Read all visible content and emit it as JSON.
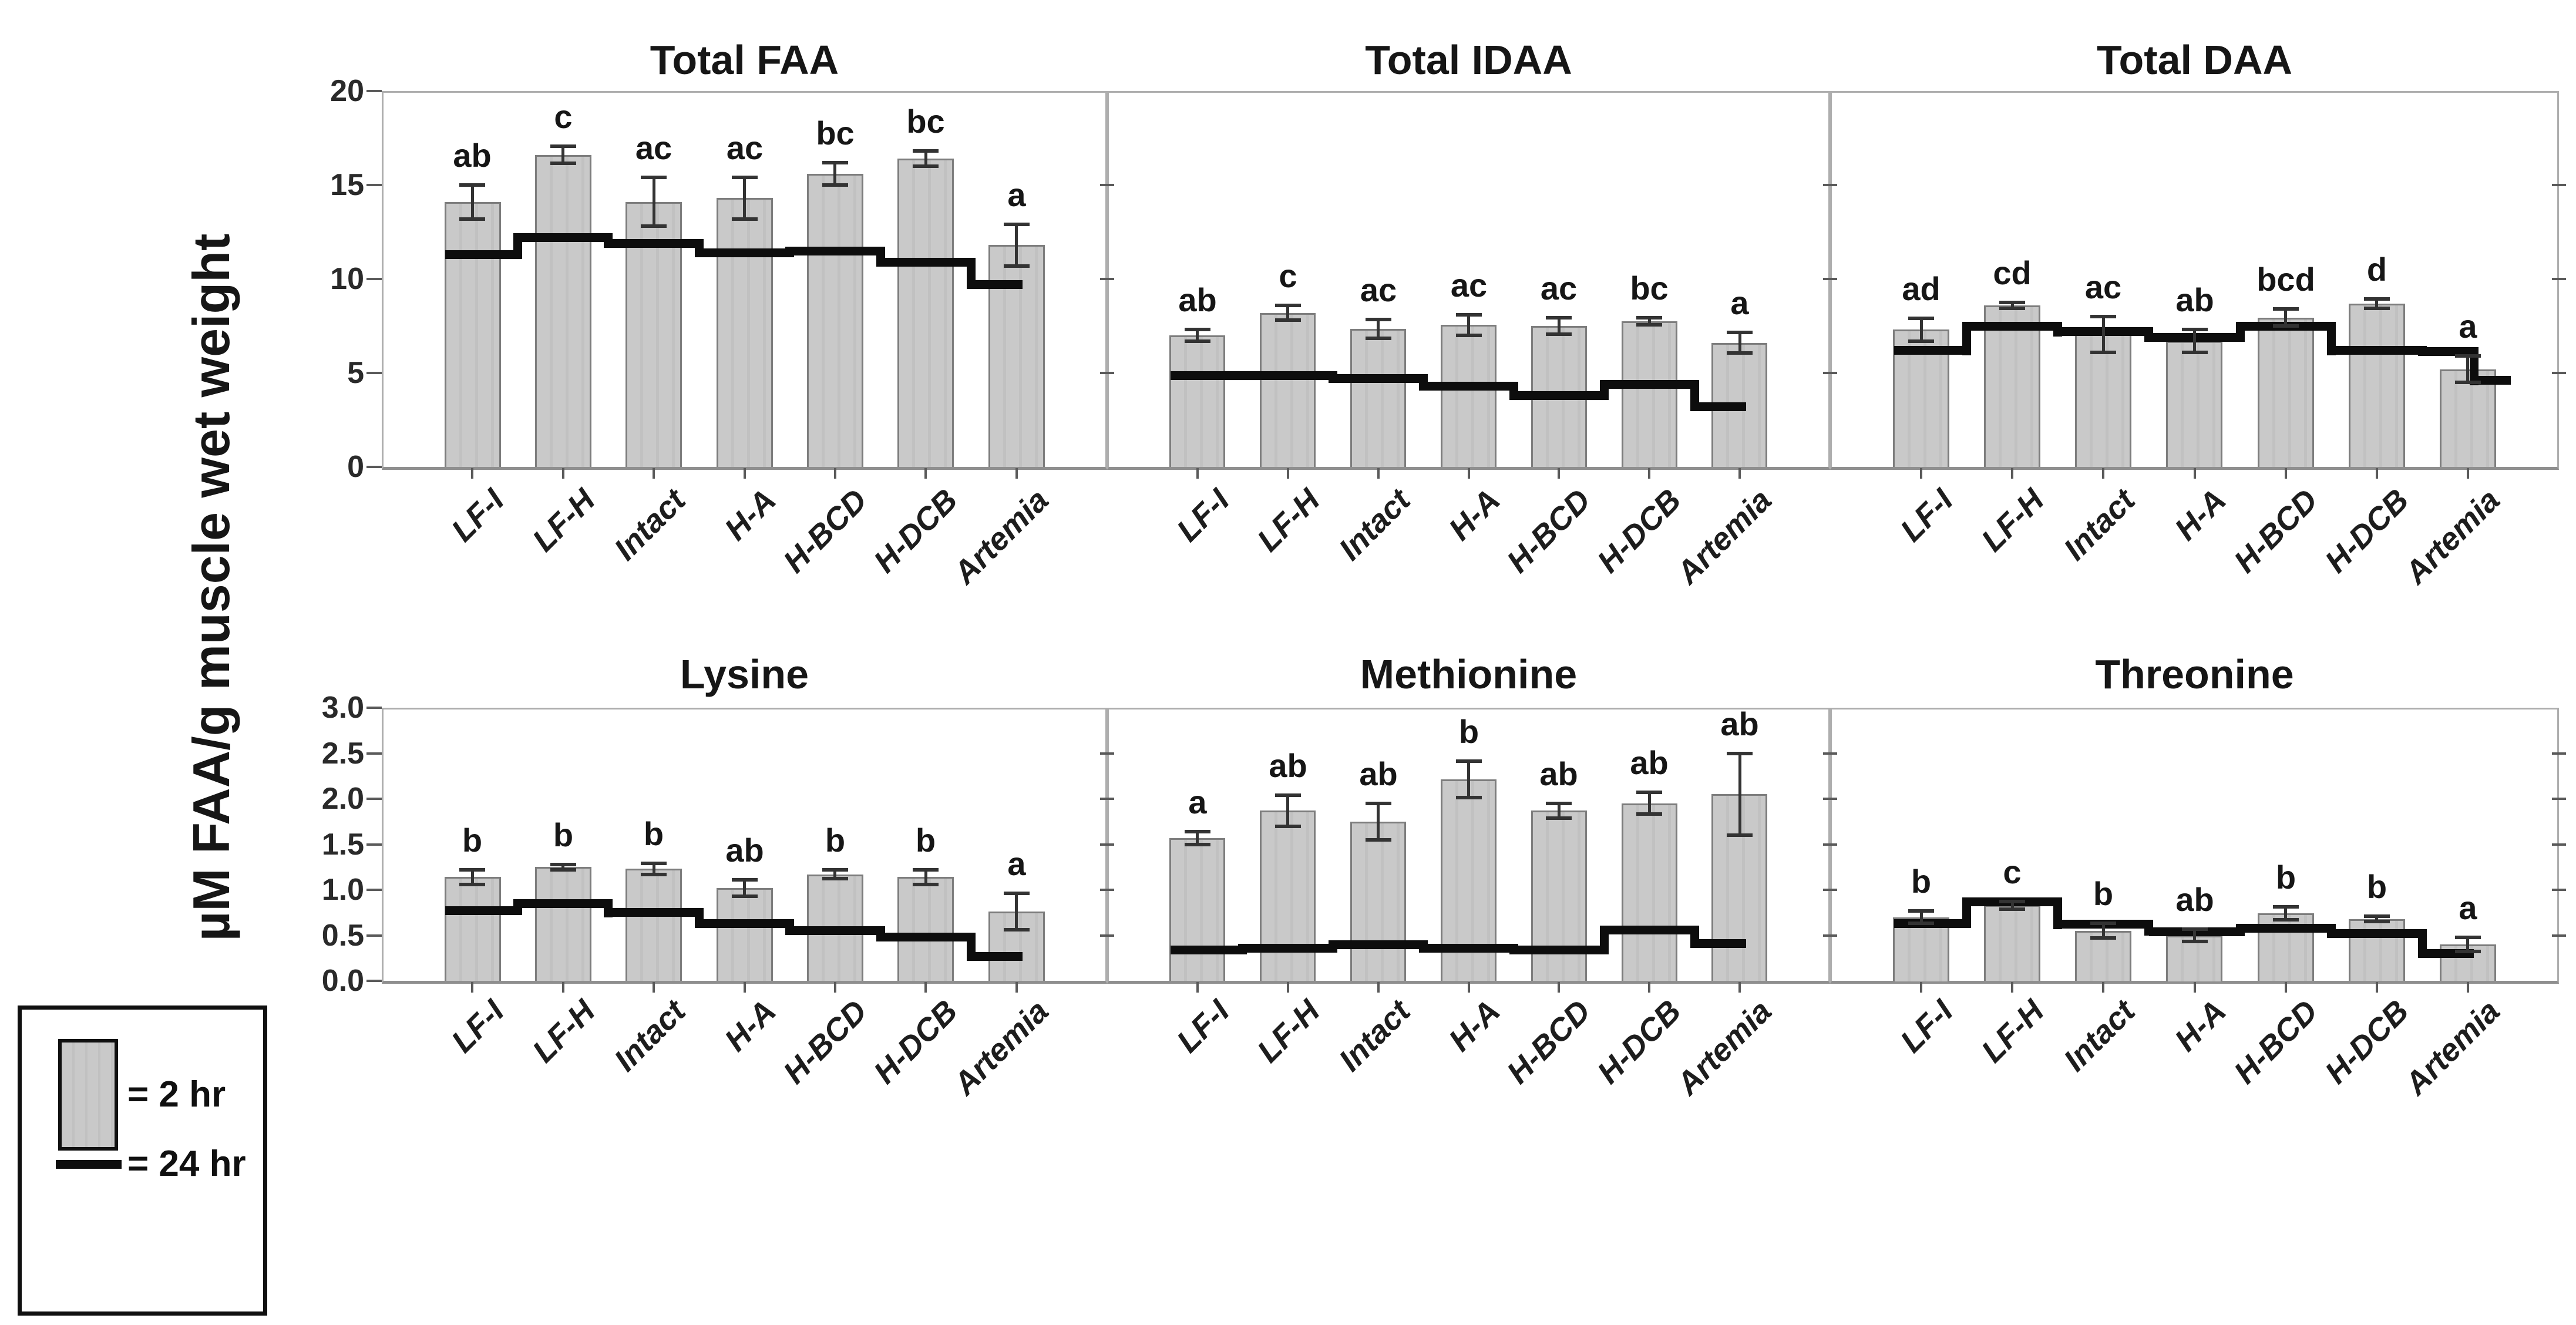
{
  "figure": {
    "y_axis_label": "µM FAA/g muscle wet weight",
    "categories": [
      "LF-I",
      "LF-H",
      "Intact",
      "H-A",
      "H-BCD",
      "H-DCB",
      "Artemia"
    ],
    "legend": {
      "bar_label": "= 2 hr",
      "line_label": "= 24 hr",
      "bar_series_name": "2 hr",
      "line_series_name": "24 hr"
    },
    "colors": {
      "bar_fill": "#c9c9c9",
      "bar_border": "#7d7d7d",
      "line_24hr": "#0d0d0d",
      "error_bar": "#333333",
      "panel_border": "#aeaeae",
      "text": "#161616"
    }
  },
  "chart_data": [
    {
      "type": "bar",
      "title": "Total FAA",
      "row": 0,
      "ylim": [
        0,
        20
      ],
      "yticks": [
        0,
        5,
        10,
        15,
        20
      ],
      "ytick_labels": [
        "0",
        "5",
        "10",
        "15",
        "20"
      ],
      "ytick_labels_shown": true,
      "categories": [
        "LF-I",
        "LF-H",
        "Intact",
        "H-A",
        "H-BCD",
        "H-DCB",
        "Artemia"
      ],
      "values_2hr": [
        14.1,
        16.6,
        14.1,
        14.3,
        15.6,
        16.4,
        11.8
      ],
      "errors_2hr": [
        0.9,
        0.45,
        1.3,
        1.1,
        0.6,
        0.4,
        1.1
      ],
      "line_24hr": [
        11.3,
        12.2,
        11.9,
        11.4,
        11.5,
        10.9,
        9.7
      ],
      "sig_letters": [
        "ab",
        "c",
        "ac",
        "ac",
        "bc",
        "bc",
        "a"
      ]
    },
    {
      "type": "bar",
      "title": "Total IDAA",
      "row": 0,
      "ylim": [
        0,
        20
      ],
      "yticks": [
        0,
        5,
        10,
        15,
        20
      ],
      "ytick_labels": [
        "0",
        "5",
        "10",
        "15",
        "20"
      ],
      "ytick_labels_shown": false,
      "categories": [
        "LF-I",
        "LF-H",
        "Intact",
        "H-A",
        "H-BCD",
        "H-DCB",
        "Artemia"
      ],
      "values_2hr": [
        7.0,
        8.2,
        7.35,
        7.55,
        7.5,
        7.75,
        6.6
      ],
      "errors_2hr": [
        0.3,
        0.4,
        0.5,
        0.55,
        0.45,
        0.2,
        0.55
      ],
      "line_24hr": [
        4.85,
        4.85,
        4.7,
        4.3,
        3.8,
        4.4,
        3.2
      ],
      "sig_letters": [
        "ab",
        "c",
        "ac",
        "ac",
        "ac",
        "bc",
        "a"
      ]
    },
    {
      "type": "bar",
      "title": "Total DAA",
      "row": 0,
      "ylim": [
        0,
        20
      ],
      "yticks": [
        0,
        5,
        10,
        15,
        20
      ],
      "ytick_labels": [
        "0",
        "5",
        "10",
        "15",
        "20"
      ],
      "ytick_labels_shown": false,
      "categories": [
        "LF-I",
        "LF-H",
        "Intact",
        "H-A",
        "H-BCD",
        "H-DCB",
        "Artemia"
      ],
      "values_2hr": [
        7.3,
        8.6,
        7.05,
        6.7,
        7.95,
        8.7,
        5.2
      ],
      "errors_2hr": [
        0.6,
        0.15,
        0.95,
        0.6,
        0.45,
        0.25,
        0.7
      ],
      "line_24hr": [
        6.2,
        7.5,
        7.2,
        6.9,
        7.5,
        6.2,
        6.15
      ],
      "line_24hr_end": 4.6,
      "sig_letters": [
        "ad",
        "cd",
        "ac",
        "ab",
        "bcd",
        "d",
        "a"
      ]
    },
    {
      "type": "bar",
      "title": "Lysine",
      "row": 1,
      "ylim": [
        0,
        3.0
      ],
      "yticks": [
        0,
        0.5,
        1.0,
        1.5,
        2.0,
        2.5,
        3.0
      ],
      "ytick_labels": [
        "0.0",
        "0.5",
        "1.0",
        "1.5",
        "2.0",
        "2.5",
        "3.0"
      ],
      "ytick_labels_shown": true,
      "categories": [
        "LF-I",
        "LF-H",
        "Intact",
        "H-A",
        "H-BCD",
        "H-DCB",
        "Artemia"
      ],
      "values_2hr": [
        1.14,
        1.25,
        1.23,
        1.02,
        1.17,
        1.14,
        0.76
      ],
      "errors_2hr": [
        0.08,
        0.03,
        0.06,
        0.09,
        0.05,
        0.08,
        0.2
      ],
      "line_24hr": [
        0.77,
        0.85,
        0.75,
        0.63,
        0.55,
        0.48,
        0.27
      ],
      "sig_letters": [
        "b",
        "b",
        "b",
        "ab",
        "b",
        "b",
        "a"
      ]
    },
    {
      "type": "bar",
      "title": "Methionine",
      "row": 1,
      "ylim": [
        0,
        3.0
      ],
      "yticks": [
        0,
        0.5,
        1.0,
        1.5,
        2.0,
        2.5,
        3.0
      ],
      "ytick_labels": [
        "0.0",
        "0.5",
        "1.0",
        "1.5",
        "2.0",
        "2.5",
        "3.0"
      ],
      "ytick_labels_shown": false,
      "categories": [
        "LF-I",
        "LF-H",
        "Intact",
        "H-A",
        "H-BCD",
        "H-DCB",
        "Artemia"
      ],
      "values_2hr": [
        1.57,
        1.87,
        1.75,
        2.21,
        1.87,
        1.95,
        2.05
      ],
      "errors_2hr": [
        0.07,
        0.17,
        0.2,
        0.2,
        0.08,
        0.12,
        0.45
      ],
      "line_24hr": [
        0.34,
        0.36,
        0.4,
        0.36,
        0.34,
        0.56,
        0.41
      ],
      "sig_letters": [
        "a",
        "ab",
        "ab",
        "b",
        "ab",
        "ab",
        "ab"
      ]
    },
    {
      "type": "bar",
      "title": "Threonine",
      "row": 1,
      "ylim": [
        0,
        3.0
      ],
      "yticks": [
        0,
        0.5,
        1.0,
        1.5,
        2.0,
        2.5,
        3.0
      ],
      "ytick_labels": [
        "0.0",
        "0.5",
        "1.0",
        "1.5",
        "2.0",
        "2.5",
        "3.0"
      ],
      "ytick_labels_shown": false,
      "categories": [
        "LF-I",
        "LF-H",
        "Intact",
        "H-A",
        "H-BCD",
        "H-DCB",
        "Artemia"
      ],
      "values_2hr": [
        0.7,
        0.83,
        0.55,
        0.5,
        0.74,
        0.68,
        0.4
      ],
      "errors_2hr": [
        0.07,
        0.04,
        0.08,
        0.07,
        0.07,
        0.03,
        0.08
      ],
      "line_24hr": [
        0.63,
        0.87,
        0.62,
        0.54,
        0.58,
        0.52,
        0.3
      ],
      "sig_letters": [
        "b",
        "c",
        "b",
        "ab",
        "b",
        "b",
        "a"
      ]
    }
  ]
}
